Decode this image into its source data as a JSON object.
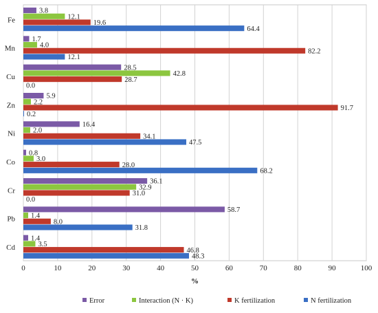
{
  "chart_data": {
    "type": "bar",
    "orientation": "horizontal",
    "categories": [
      "Fe",
      "Mn",
      "Cu",
      "Zn",
      "Ni",
      "Co",
      "Cr",
      "Pb",
      "Cd"
    ],
    "series": [
      {
        "name": "Error",
        "color": "#7b5aa6",
        "values": [
          3.8,
          1.7,
          28.5,
          5.9,
          16.4,
          0.8,
          36.1,
          58.7,
          1.4
        ]
      },
      {
        "name": "Interaction (N · K)",
        "color": "#8cc63f",
        "values": [
          12.1,
          4.0,
          42.8,
          2.2,
          2.0,
          3.0,
          32.9,
          1.4,
          3.5
        ]
      },
      {
        "name": "K fertilization",
        "color": "#c0392b",
        "values": [
          19.6,
          82.2,
          28.7,
          91.7,
          34.1,
          28.0,
          31.0,
          8.0,
          46.8
        ]
      },
      {
        "name": "N fertilization",
        "color": "#3a6fc4",
        "values": [
          64.4,
          12.1,
          0.0,
          0.2,
          47.5,
          68.2,
          0.0,
          31.8,
          48.3
        ]
      }
    ],
    "value_labels": {
      "Error": [
        "3.8",
        "1.7",
        "28.5",
        "5.9",
        "16.4",
        "0.8",
        "36.1",
        "58.7",
        "1.4"
      ],
      "Interaction (N · K)": [
        "12.1",
        "4.0",
        "42.8",
        "2.2",
        "2.0",
        "3.0",
        "32.9",
        "1.4",
        "3.5"
      ],
      "K fertilization": [
        "19.6",
        "82.2",
        "28.7",
        "91.7",
        "34.1",
        "28.0",
        "31.0",
        "8.0",
        "46.8"
      ],
      "N fertilization": [
        "64.4",
        "12.1",
        "0.0",
        "0.2",
        "47.5",
        "68.2",
        "0.0",
        "31.8",
        "48.3"
      ]
    },
    "xlabel": "%",
    "xlim": [
      0,
      100
    ],
    "xticks": [
      0,
      10,
      20,
      30,
      40,
      50,
      60,
      70,
      80,
      90,
      100
    ],
    "grid": "vertical",
    "legend_position": "bottom"
  }
}
